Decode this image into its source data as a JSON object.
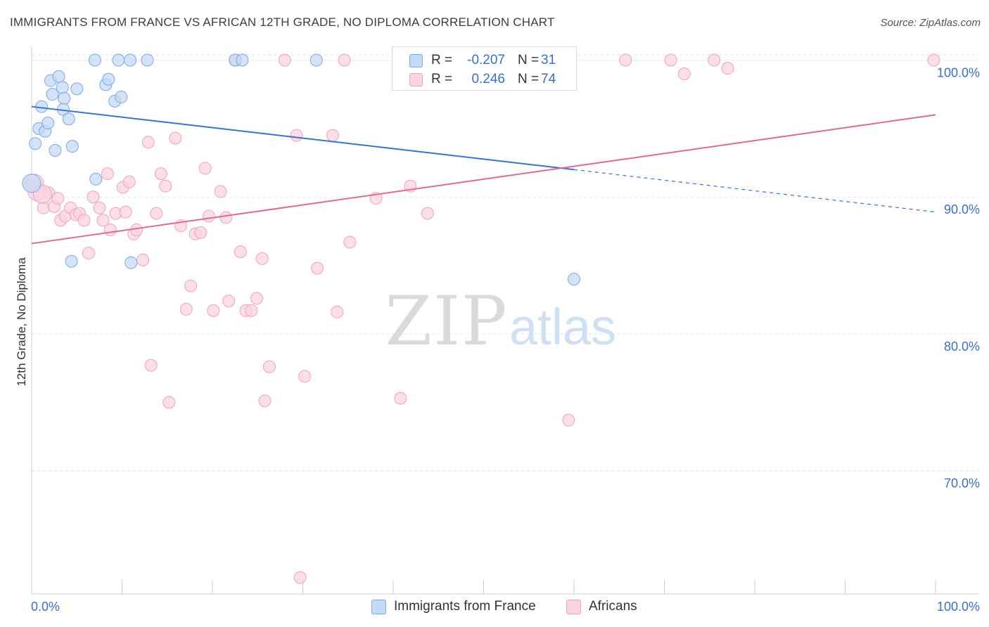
{
  "chart_data": {
    "type": "scatter",
    "title": "IMMIGRANTS FROM FRANCE VS AFRICAN 12TH GRADE, NO DIPLOMA CORRELATION CHART",
    "source": "Source: ZipAtlas.com",
    "ylabel": "12th Grade, No Diploma",
    "xlabel": "",
    "xlim": [
      0,
      100
    ],
    "ylim": [
      61,
      101
    ],
    "x_tick_labels": [
      "0.0%",
      "100.0%"
    ],
    "y_ticks": [
      70,
      80,
      90,
      100
    ],
    "y_tick_labels": [
      "70.0%",
      "80.0%",
      "90.0%",
      "100.0%"
    ],
    "grid": true,
    "watermark": {
      "part1": "ZIP",
      "part2": "atlas"
    },
    "legend": {
      "rows": [
        {
          "r_label": "R =",
          "r_value": "-0.207",
          "n_label": "N =",
          "n_value": "31"
        },
        {
          "r_label": "R =",
          "r_value": "0.246",
          "n_label": "N =",
          "n_value": "74"
        }
      ]
    },
    "series": [
      {
        "name": "Immigrants from France",
        "color": "#7aa9e6",
        "fill": "#c5d9f5",
        "trend_color": "#3a73cc",
        "trend": {
          "x0": 0,
          "y0": 96.6,
          "x1": 60,
          "y1": 92.0,
          "dash_to_x": 100,
          "dash_to_y": 88.9
        },
        "points": [
          [
            0.4,
            93.9
          ],
          [
            0.8,
            95.0
          ],
          [
            1.1,
            96.6
          ],
          [
            1.5,
            94.8
          ],
          [
            1.8,
            95.4
          ],
          [
            2.1,
            98.5
          ],
          [
            2.3,
            97.5
          ],
          [
            2.6,
            93.4
          ],
          [
            3.0,
            98.8
          ],
          [
            3.4,
            98.0
          ],
          [
            3.6,
            97.2
          ],
          [
            3.5,
            96.4
          ],
          [
            4.1,
            95.7
          ],
          [
            4.5,
            93.7
          ],
          [
            5.0,
            97.9
          ],
          [
            4.4,
            85.3
          ],
          [
            7.0,
            100.0
          ],
          [
            7.1,
            91.3
          ],
          [
            8.2,
            98.2
          ],
          [
            8.5,
            98.6
          ],
          [
            9.2,
            97.0
          ],
          [
            9.6,
            100.0
          ],
          [
            9.9,
            97.3
          ],
          [
            10.9,
            100.0
          ],
          [
            11.0,
            85.2
          ],
          [
            12.8,
            100.0
          ],
          [
            22.5,
            100.0
          ],
          [
            23.3,
            100.0
          ],
          [
            31.5,
            100.0
          ],
          [
            60.0,
            84.0
          ],
          [
            0.0,
            91.0
          ]
        ]
      },
      {
        "name": "Africans",
        "color": "#f0a3bd",
        "fill": "#f9d3e0",
        "trend_color": "#e06a96",
        "trend": {
          "x0": 0,
          "y0": 86.6,
          "x1": 100,
          "y1": 96.0
        },
        "points": [
          [
            0.6,
            90.4
          ],
          [
            1.3,
            89.2
          ],
          [
            1.9,
            90.3
          ],
          [
            2.5,
            89.3
          ],
          [
            2.9,
            89.9
          ],
          [
            3.2,
            88.3
          ],
          [
            3.7,
            88.6
          ],
          [
            4.3,
            89.2
          ],
          [
            4.9,
            88.7
          ],
          [
            5.3,
            88.8
          ],
          [
            5.8,
            88.3
          ],
          [
            6.3,
            85.9
          ],
          [
            6.8,
            90.0
          ],
          [
            7.5,
            89.2
          ],
          [
            7.9,
            88.3
          ],
          [
            8.4,
            91.7
          ],
          [
            8.7,
            87.6
          ],
          [
            9.3,
            88.8
          ],
          [
            10.1,
            90.7
          ],
          [
            10.4,
            88.9
          ],
          [
            10.8,
            91.1
          ],
          [
            11.3,
            87.3
          ],
          [
            11.6,
            87.6
          ],
          [
            12.3,
            85.4
          ],
          [
            12.9,
            94.0
          ],
          [
            13.2,
            77.7
          ],
          [
            13.8,
            88.8
          ],
          [
            14.3,
            91.7
          ],
          [
            14.8,
            90.8
          ],
          [
            15.2,
            75.0
          ],
          [
            15.9,
            94.3
          ],
          [
            16.5,
            87.9
          ],
          [
            17.1,
            81.8
          ],
          [
            17.6,
            83.5
          ],
          [
            18.1,
            87.3
          ],
          [
            18.7,
            87.4
          ],
          [
            19.2,
            92.1
          ],
          [
            19.6,
            88.6
          ],
          [
            20.1,
            81.7
          ],
          [
            20.9,
            90.4
          ],
          [
            21.5,
            88.5
          ],
          [
            21.8,
            82.4
          ],
          [
            22.6,
            100.0
          ],
          [
            23.1,
            86.0
          ],
          [
            23.7,
            81.7
          ],
          [
            24.3,
            81.7
          ],
          [
            24.9,
            82.6
          ],
          [
            25.5,
            85.5
          ],
          [
            25.8,
            75.1
          ],
          [
            26.3,
            77.6
          ],
          [
            28.0,
            100.0
          ],
          [
            29.3,
            94.5
          ],
          [
            29.7,
            62.2
          ],
          [
            30.2,
            76.9
          ],
          [
            31.6,
            84.8
          ],
          [
            33.3,
            94.5
          ],
          [
            33.8,
            81.6
          ],
          [
            34.6,
            100.0
          ],
          [
            35.2,
            86.7
          ],
          [
            38.1,
            89.9
          ],
          [
            40.8,
            75.3
          ],
          [
            41.9,
            90.8
          ],
          [
            43.8,
            88.8
          ],
          [
            54.5,
            100.0
          ],
          [
            55.8,
            99.2
          ],
          [
            59.4,
            73.7
          ],
          [
            65.7,
            100.0
          ],
          [
            70.7,
            100.0
          ],
          [
            72.2,
            99.0
          ],
          [
            75.5,
            100.0
          ],
          [
            77.0,
            99.4
          ],
          [
            99.8,
            100.0
          ],
          [
            0.3,
            91.0
          ],
          [
            1.2,
            90.2
          ]
        ]
      }
    ]
  }
}
